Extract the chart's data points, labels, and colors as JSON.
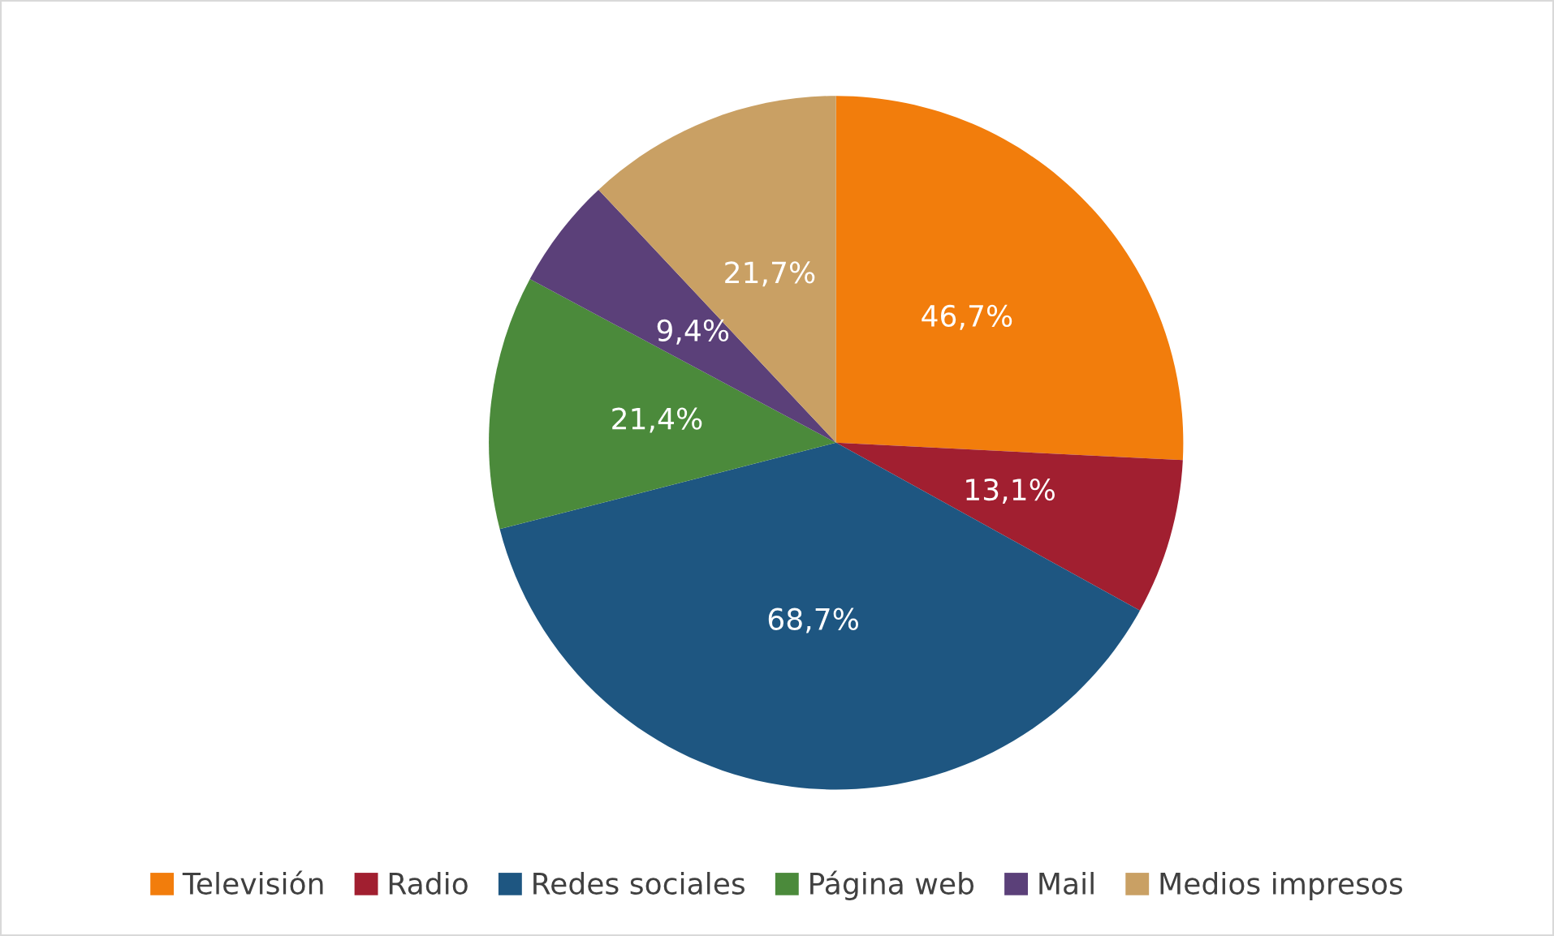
{
  "chart_data": {
    "type": "pie",
    "categories": [
      "Televisión",
      "Radio",
      "Redes sociales",
      "Página web",
      "Mail",
      "Medios impresos"
    ],
    "values": [
      46.7,
      13.1,
      68.7,
      21.4,
      9.4,
      21.7
    ],
    "value_labels": [
      "46,7%",
      "13,1%",
      "68,7%",
      "21,4%",
      "9,4%",
      "21,7%"
    ],
    "colors": [
      "#f27d0c",
      "#a11f30",
      "#1e5681",
      "#4b8a3b",
      "#5b4079",
      "#c9a064"
    ],
    "legend": "bottom"
  }
}
